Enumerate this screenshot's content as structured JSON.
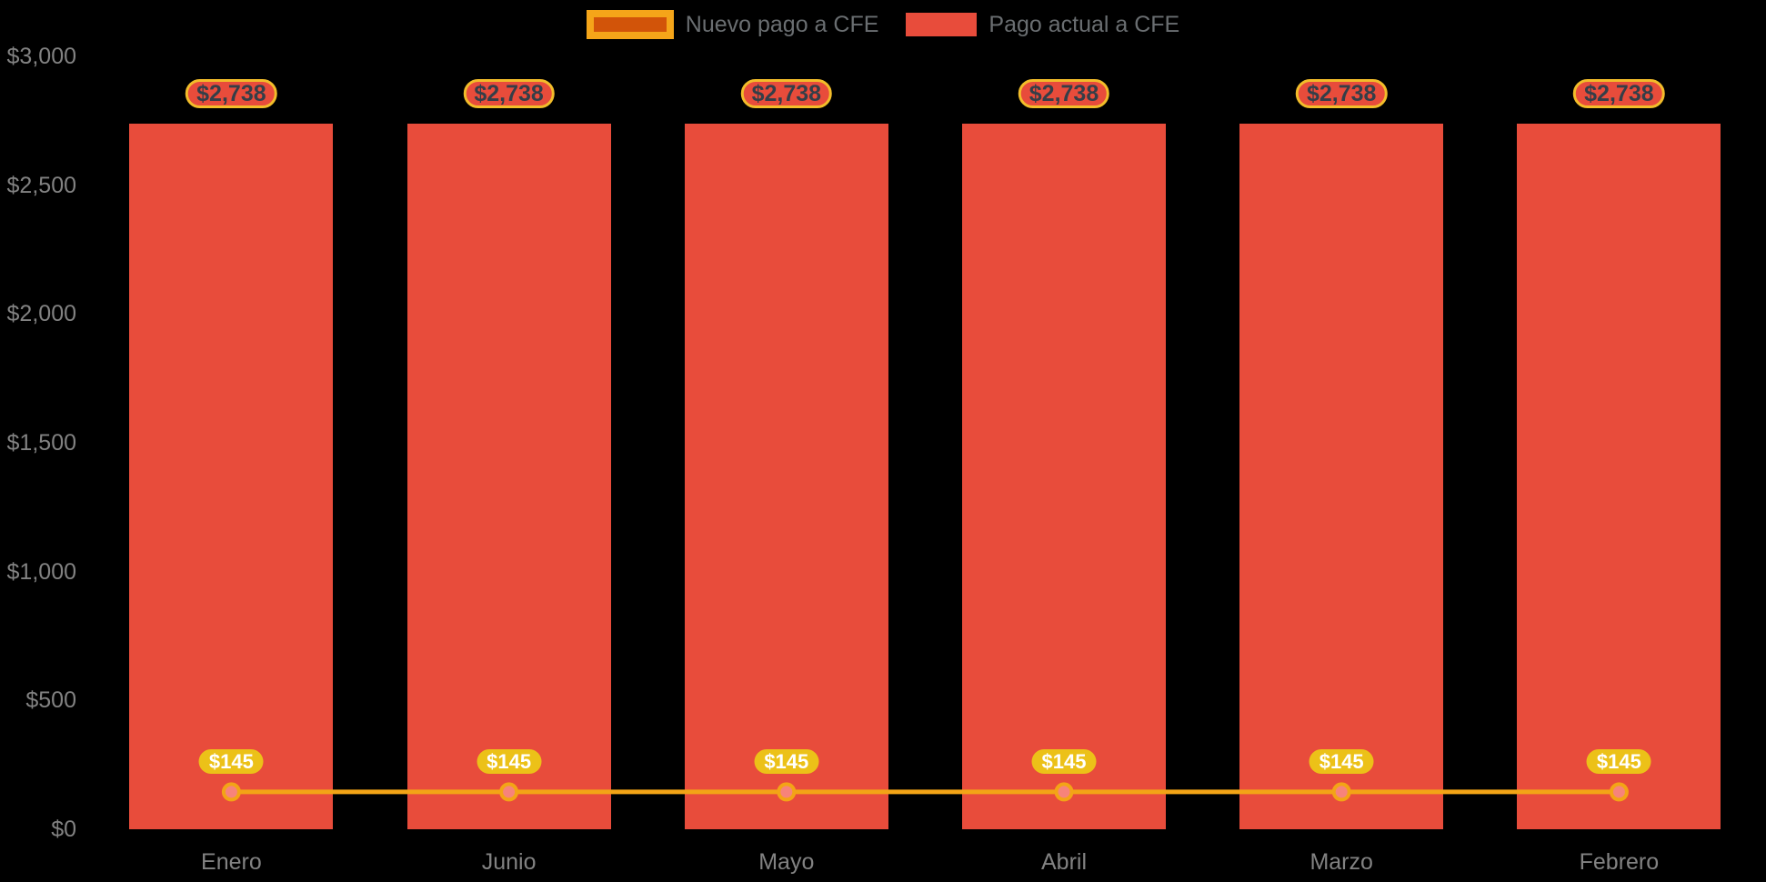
{
  "chart_data": {
    "type": "bar",
    "subtype": "bar-with-line-overlay",
    "title": "",
    "categories": [
      "Enero",
      "Junio",
      "Mayo",
      "Abril",
      "Marzo",
      "Febrero"
    ],
    "series": [
      {
        "name": "Nuevo pago a CFE",
        "type": "line",
        "values": [
          145,
          145,
          145,
          145,
          145,
          145
        ],
        "point_labels": [
          "$145",
          "$145",
          "$145",
          "$145",
          "$145",
          "$145"
        ],
        "color": "#f3a416",
        "marker_fill": "#f7837b",
        "label_bg": "#ecc118",
        "label_text_color": "#ffffff",
        "legend_swatch": {
          "fill": "#d25409",
          "border": "#f5a519"
        }
      },
      {
        "name": "Pago actual a CFE",
        "type": "bar",
        "values": [
          2738,
          2738,
          2738,
          2738,
          2738,
          2738
        ],
        "point_labels": [
          "$2,738",
          "$2,738",
          "$2,738",
          "$2,738",
          "$2,738",
          "$2,738"
        ],
        "color": "#e84c3b",
        "label_bg": "#e84c3b",
        "label_border": "#f2bd2a",
        "label_text_color": "#343e48",
        "legend_swatch": {
          "fill": "#e84c3b"
        }
      }
    ],
    "ylim": [
      0,
      3000
    ],
    "yticks": [
      "$3,000",
      "$2,500",
      "$2,000",
      "$1,500",
      "$1,000",
      "$500",
      "$0"
    ],
    "xlabel": "",
    "ylabel": "",
    "grid": false,
    "legend_position": "top",
    "background": "#000000",
    "axis_text_color": "#828282",
    "legend_text_color": "#6a6e71"
  }
}
